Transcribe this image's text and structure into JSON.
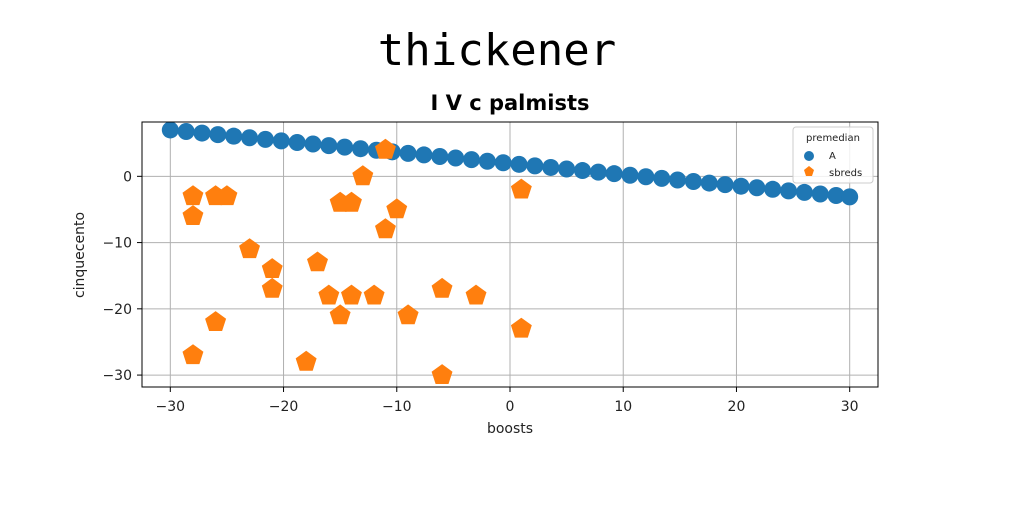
{
  "title": "thickener",
  "chart_data": {
    "type": "scatter",
    "title": "I V c palmists",
    "xlabel": "boosts",
    "ylabel": "cinquecento",
    "xlim": [
      -32.5,
      32.5
    ],
    "ylim": [
      -31.8,
      8.2
    ],
    "xticks": [
      -30,
      -20,
      -10,
      0,
      10,
      20,
      30
    ],
    "yticks": [
      -30,
      -20,
      -10,
      0
    ],
    "grid": true,
    "legend": {
      "title": "premedian",
      "placement": "top-right"
    },
    "series": [
      {
        "name": "A",
        "marker": "circle",
        "color": "#1f77b4",
        "points": [
          [
            -30.0,
            7.0
          ],
          [
            -28.6,
            6.76
          ],
          [
            -27.2,
            6.53
          ],
          [
            -25.8,
            6.29
          ],
          [
            -24.4,
            6.06
          ],
          [
            -23.0,
            5.82
          ],
          [
            -21.6,
            5.58
          ],
          [
            -20.2,
            5.35
          ],
          [
            -18.8,
            5.11
          ],
          [
            -17.4,
            4.88
          ],
          [
            -16.0,
            4.64
          ],
          [
            -14.6,
            4.41
          ],
          [
            -13.2,
            4.17
          ],
          [
            -11.8,
            3.93
          ],
          [
            -10.4,
            3.7
          ],
          [
            -9.0,
            3.46
          ],
          [
            -7.6,
            3.23
          ],
          [
            -6.2,
            2.99
          ],
          [
            -4.8,
            2.76
          ],
          [
            -3.4,
            2.52
          ],
          [
            -2.0,
            2.28
          ],
          [
            -0.6,
            2.05
          ],
          [
            0.8,
            1.81
          ],
          [
            2.2,
            1.58
          ],
          [
            3.6,
            1.34
          ],
          [
            5.0,
            1.1
          ],
          [
            6.4,
            0.87
          ],
          [
            7.8,
            0.63
          ],
          [
            9.2,
            0.4
          ],
          [
            10.6,
            0.16
          ],
          [
            12.0,
            -0.07
          ],
          [
            13.4,
            -0.31
          ],
          [
            14.8,
            -0.55
          ],
          [
            16.2,
            -0.78
          ],
          [
            17.6,
            -1.02
          ],
          [
            19.0,
            -1.25
          ],
          [
            20.4,
            -1.49
          ],
          [
            21.8,
            -1.72
          ],
          [
            23.2,
            -1.96
          ],
          [
            24.6,
            -2.2
          ],
          [
            26.0,
            -2.43
          ],
          [
            27.4,
            -2.67
          ],
          [
            28.8,
            -2.9
          ],
          [
            30.0,
            -3.1
          ]
        ]
      },
      {
        "name": "sbreds",
        "marker": "pentagon",
        "color": "#ff7f0e",
        "points": [
          [
            -28,
            -3
          ],
          [
            -28,
            -6
          ],
          [
            -26,
            -3
          ],
          [
            -25,
            -3
          ],
          [
            -23,
            -11
          ],
          [
            -21,
            -14
          ],
          [
            -21,
            -17
          ],
          [
            -26,
            -22
          ],
          [
            -28,
            -27
          ],
          [
            -17,
            -13
          ],
          [
            -16,
            -18
          ],
          [
            -15,
            -21
          ],
          [
            -14,
            -18
          ],
          [
            -12,
            -18
          ],
          [
            -18,
            -28
          ],
          [
            -15,
            -4
          ],
          [
            -14,
            -4
          ],
          [
            -13,
            0
          ],
          [
            -11,
            4
          ],
          [
            -11,
            -8
          ],
          [
            -10,
            -5
          ],
          [
            -9,
            -21
          ],
          [
            -6,
            -17
          ],
          [
            -6,
            -30
          ],
          [
            -3,
            -18
          ],
          [
            1,
            -2
          ],
          [
            1,
            -23
          ]
        ]
      }
    ]
  }
}
